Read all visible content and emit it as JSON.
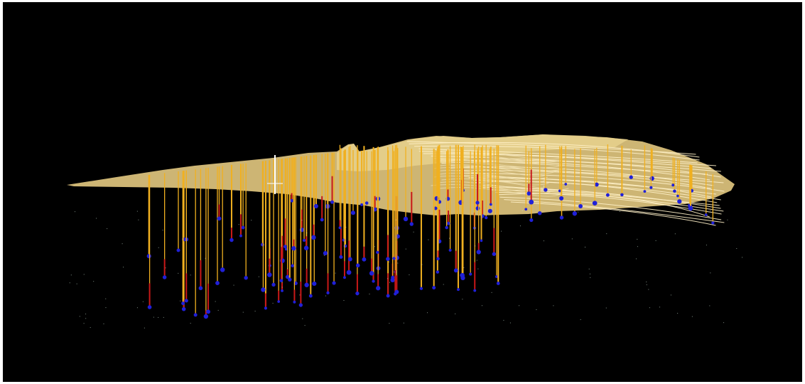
{
  "viewport": {
    "background": "#000000",
    "frame_color": "#ffffff"
  },
  "palette": {
    "terrain_fill": "#d8bf7a",
    "terrain_highlight": "#f2e2b0",
    "contour_line": "#fff1c8",
    "hole_upper": "#f0b020",
    "hole_lower": "#c81818",
    "hole_marker": "#2020d8",
    "noise_points": "#cfe8d8",
    "cursor": "#ffffff"
  },
  "scene": {
    "type": "3d-drillhole-terrain-view",
    "terrain_surface": "contoured",
    "collar_cursor_icon": "crosshair-icon"
  }
}
